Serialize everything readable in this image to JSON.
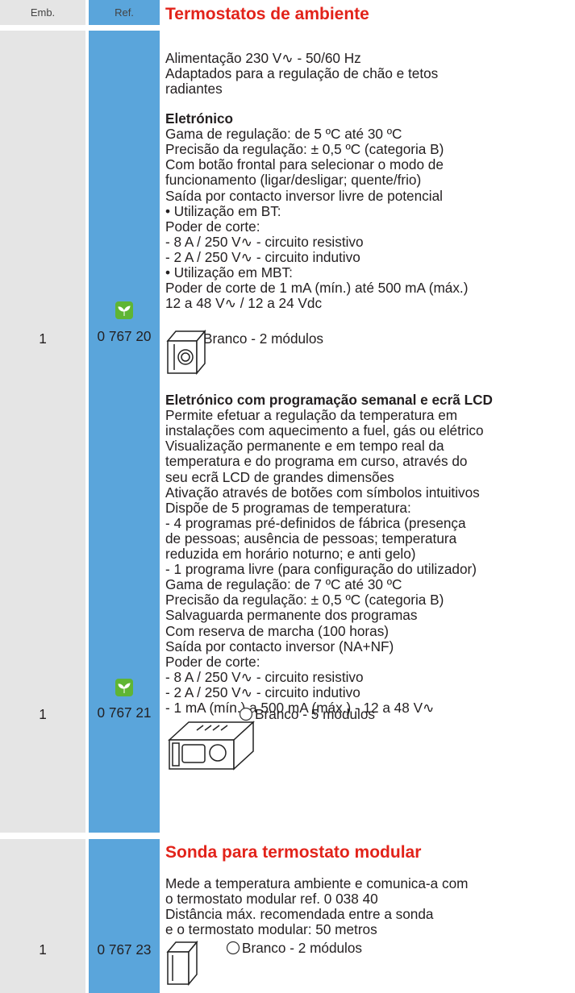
{
  "header": {
    "emb": "Emb.",
    "ref": "Ref."
  },
  "sections": [
    {
      "title": "Termostatos de ambiente",
      "intro": [
        "Alimentação 230 V∿ - 50/60 Hz",
        "Adaptados para a regulação de chão e tetos",
        "radiantes"
      ],
      "products": [
        {
          "subtitle": "Eletrónico",
          "lines": [
            "Gama de regulação: de 5 ºC até 30 ºC",
            "Precisão da regulação: ± 0,5 ºC (categoria B)",
            "Com botão frontal para selecionar o modo de",
            "funcionamento (ligar/desligar; quente/frio)",
            "Saída por contacto inversor livre de potencial",
            "• Utilização em BT:",
            "Poder de corte:",
            "- 8 A / 250 V∿ - circuito resistivo",
            "- 2 A / 250 V∿ - circuito indutivo",
            "• Utilização em MBT:",
            "Poder de corte de 1 mA (mín.) até 500 mA (máx.)",
            "12 a 48 V∿ / 12 a 24 Vdc"
          ],
          "variant": "Branco - 2 módulos",
          "emb": "1",
          "ref": "0 767 20"
        },
        {
          "subtitle": "Eletrónico com programação semanal e ecrã LCD",
          "lines": [
            "Permite efetuar a regulação da temperatura em",
            "instalações com aquecimento a fuel, gás ou elétrico",
            "Visualização permanente e em tempo real da",
            "temperatura e do programa em curso, através do",
            "seu ecrã LCD de grandes dimensões",
            "Ativação através de botões com símbolos intuitivos",
            "Dispõe de 5 programas de temperatura:",
            "- 4 programas pré-definidos de fábrica (presença",
            "de pessoas; ausência de pessoas; temperatura",
            "reduzida em horário noturno; e anti gelo)",
            "- 1 programa livre (para configuração do utilizador)",
            "Gama de regulação: de 7 ºC até 30 ºC",
            "Precisão da regulação: ± 0,5 ºC (categoria B)",
            "Salvaguarda permanente dos programas",
            "Com reserva de marcha (100 horas)",
            "Saída por contacto inversor (NA+NF)",
            "Poder de corte:",
            "- 8 A / 250 V∿ - circuito resistivo",
            "- 2 A / 250 V∿ - circuito indutivo",
            "- 1 mA (mín.) a 500 mA (máx.) - 12 a 48 V∿"
          ],
          "variant": "Branco - 5 módulos",
          "emb": "1",
          "ref": "0 767 21"
        }
      ]
    },
    {
      "title": "Sonda para termostato modular",
      "intro": [
        "Mede a temperatura ambiente e comunica-a com",
        "o termostato modular ref. 0 038 40",
        "Distância máx. recomendada entre a sonda",
        "e o termostato modular: 50 metros"
      ],
      "products": [
        {
          "variant": "Branco - 2 módulos",
          "emb": "1",
          "ref": "0 767 23"
        }
      ]
    }
  ]
}
